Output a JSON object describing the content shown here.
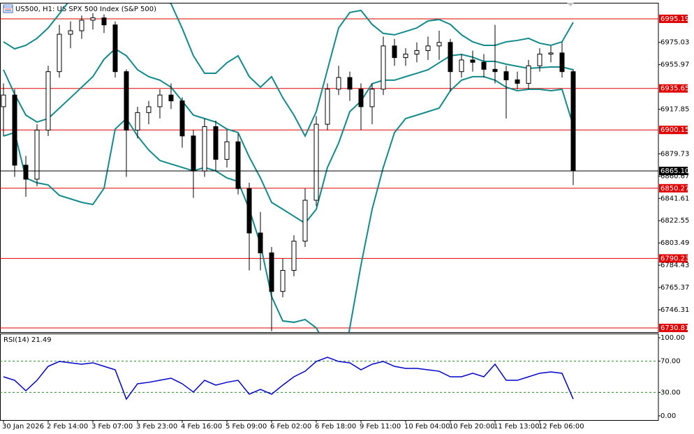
{
  "chart_data": [
    {
      "type": "candlestick",
      "title": "US500, H1:  US SPX 500 Index (S&P 500)",
      "categories": [
        "30 Jan 2026",
        null,
        null,
        null,
        "2 Feb 14:00",
        null,
        null,
        null,
        "3 Feb 07:00",
        null,
        null,
        null,
        "3 Feb 23:00",
        null,
        null,
        null,
        "4 Feb 16:00",
        null,
        null,
        null,
        "5 Feb 09:00",
        null,
        null,
        null,
        "6 Feb 02:00",
        null,
        null,
        null,
        "6 Feb 18:00",
        null,
        null,
        null,
        "9 Feb 11:00",
        null,
        null,
        null,
        "10 Feb 04:00",
        null,
        null,
        null,
        "10 Feb 20:00",
        null,
        null,
        null,
        "11 Feb 13:00",
        null,
        null,
        null,
        "12 Feb 06:00",
        null,
        null,
        null
      ],
      "open": [
        6920,
        6930,
        6870,
        6858,
        6900,
        6950,
        6982,
        6985,
        6994,
        6996,
        6990,
        6950,
        6900,
        6915,
        6920,
        6930,
        6925,
        6895,
        6865,
        6903,
        6875,
        6890,
        6850,
        6812,
        6795,
        6762,
        6780,
        6805,
        6840,
        6905,
        6935,
        6945,
        6935,
        6920,
        6935,
        6972,
        6962,
        6965,
        6968,
        6972,
        6975,
        6950,
        6960,
        6958,
        6952,
        6950,
        6943,
        6940,
        6955,
        6965,
        6966,
        6950
      ],
      "high": [
        6940,
        6935,
        6878,
        6905,
        6955,
        6990,
        6993,
        6998,
        7000,
        6999,
        6993,
        6952,
        6920,
        6925,
        6935,
        6940,
        6928,
        6900,
        6910,
        6908,
        6900,
        6897,
        6855,
        6830,
        6800,
        6790,
        6810,
        6850,
        6912,
        6940,
        6955,
        6950,
        6940,
        6940,
        6980,
        6978,
        6970,
        6975,
        6980,
        6985,
        6978,
        6965,
        6968,
        6965,
        6990,
        6955,
        6950,
        6960,
        6970,
        6972,
        6975,
        6952
      ],
      "low": [
        6895,
        6860,
        6843,
        6852,
        6895,
        6945,
        6970,
        6978,
        6986,
        6983,
        6945,
        6860,
        6893,
        6905,
        6910,
        6918,
        6885,
        6842,
        6860,
        6865,
        6868,
        6845,
        6780,
        6780,
        6728,
        6757,
        6775,
        6800,
        6835,
        6900,
        6930,
        6925,
        6900,
        6905,
        6930,
        6955,
        6955,
        6958,
        6960,
        6960,
        6933,
        6945,
        6950,
        6945,
        6940,
        6910,
        6935,
        6935,
        6950,
        6958,
        6945,
        6853
      ],
      "close": [
        6930,
        6870,
        6858,
        6900,
        6950,
        6982,
        6985,
        6994,
        6996,
        6990,
        6950,
        6900,
        6915,
        6920,
        6930,
        6925,
        6895,
        6865,
        6903,
        6875,
        6890,
        6850,
        6812,
        6795,
        6762,
        6780,
        6805,
        6840,
        6905,
        6935,
        6945,
        6935,
        6920,
        6935,
        6972,
        6962,
        6965,
        6968,
        6972,
        6975,
        6950,
        6960,
        6958,
        6952,
        6950,
        6943,
        6940,
        6955,
        6965,
        6966,
        6950,
        6865.1
      ],
      "overlays": [
        {
          "color": "#138a8a",
          "values": [
            6975.5,
            6969.5,
            6972.5,
            6978.5,
            6987.4,
            6999.4,
            7012,
            7020,
            7025,
            7028,
            7030,
            7028,
            7025,
            7020,
            7015,
            7008,
            6987,
            6963.6,
            6948.6,
            6948.6,
            6957.6,
            6963.6,
            6945.7,
            6936.7,
            6945.7,
            6927.7,
            6912.8,
            6894.9,
            6915.8,
            6951.6,
            6987.4,
            7000.6,
            7002.4,
            6990.4,
            6982.7,
            6981.5,
            6984.4,
            6987.4,
            6993.4,
            6994.6,
            6990.4,
            6981.5,
            6975.5,
            6972.5,
            6972.5,
            6975.5,
            6976.7,
            6978.5,
            6974.3,
            6972.5,
            6975.5,
            6992.2
          ]
        },
        {
          "color": "#138a8a",
          "values": [
            6951.6,
            6930.7,
            6912.8,
            6906.9,
            6909.9,
            6918.8,
            6927.7,
            6936.7,
            6945.7,
            6960.6,
            6969.5,
            6963.6,
            6951.6,
            6945.7,
            6942.7,
            6936.7,
            6924.8,
            6912.8,
            6909.9,
            6906.9,
            6900.9,
            6897.9,
            6877.0,
            6859.1,
            6838.2,
            6832.3,
            6826.3,
            6820.3,
            6832.3,
            6868.1,
            6888.9,
            6915.8,
            6924.8,
            6939.7,
            6942.7,
            6942.7,
            6945.7,
            6948.6,
            6951.6,
            6957.6,
            6963.6,
            6964.7,
            6962.4,
            6958.8,
            6958.8,
            6956.4,
            6954.6,
            6952.8,
            6953.4,
            6954.0,
            6954.0,
            6951.6
          ]
        },
        {
          "color": "#138a8a",
          "values": [
            6894.9,
            6897.9,
            6859.1,
            6854.9,
            6853.1,
            6844.2,
            6841.2,
            6838.2,
            6836.4,
            6850.2,
            6900.9,
            6909.9,
            6894.9,
            6883.0,
            6874.0,
            6871.0,
            6868.1,
            6865.1,
            6868.1,
            6865.1,
            6859.1,
            6856.1,
            6832.3,
            6802.4,
            6757.7,
            6736.8,
            6735.6,
            6738.0,
            6730.8,
            6712.9,
            6677.1,
            6730.8,
            6784.5,
            6832.3,
            6868.1,
            6897.9,
            6909.9,
            6912.8,
            6915.8,
            6918.8,
            6933.7,
            6942.7,
            6945.7,
            6945.7,
            6942.7,
            6936.7,
            6933.7,
            6934.9,
            6934.9,
            6933.7,
            6934.9,
            6903.9
          ]
        }
      ],
      "ylim": [
        6727.2,
        7008.3
      ],
      "yticks": [
        6975.03,
        6955.97,
        6917.85,
        6879.73,
        6860.67,
        6841.61,
        6822.55,
        6803.49,
        6784.43,
        6765.37,
        6746.31
      ],
      "levels": [
        6995.19,
        6935.65,
        6900.15,
        6850.27,
        6790.23,
        6730.81
      ],
      "level_color": "#e00000",
      "current": {
        "value": 6865.1,
        "label": "6865.10"
      },
      "up_color": "#ffffff",
      "down_color": "#000000"
    },
    {
      "type": "line",
      "title": "RSI(14) 21.49",
      "values": [
        50.0,
        45.5,
        32.1,
        45.5,
        63.4,
        69.6,
        67.9,
        66.1,
        67.9,
        63.4,
        58.9,
        21.4,
        41.1,
        42.9,
        45.5,
        48.2,
        41.1,
        30.4,
        45.5,
        39.3,
        42.9,
        45.5,
        27.7,
        33.9,
        27.7,
        39.3,
        50.0,
        57.1,
        69.6,
        75.0,
        69.6,
        67.9,
        58.9,
        66.1,
        69.6,
        63.4,
        60.7,
        60.7,
        58.9,
        57.1,
        50.0,
        50.0,
        54.5,
        50.0,
        66.1,
        45.5,
        45.5,
        50.0,
        54.5,
        56.3,
        54.5,
        21.49
      ],
      "color": "#0000cc",
      "ylim": [
        -5.4,
        105.4
      ],
      "yticks": [
        {
          "value": 100,
          "label": "100.00"
        },
        {
          "value": 70,
          "label": "70.00"
        },
        {
          "value": 30,
          "label": "30.00"
        },
        {
          "value": 0,
          "label": "0.00"
        }
      ],
      "levels": [
        70,
        30
      ],
      "level_color": "#2e8b2e"
    }
  ]
}
